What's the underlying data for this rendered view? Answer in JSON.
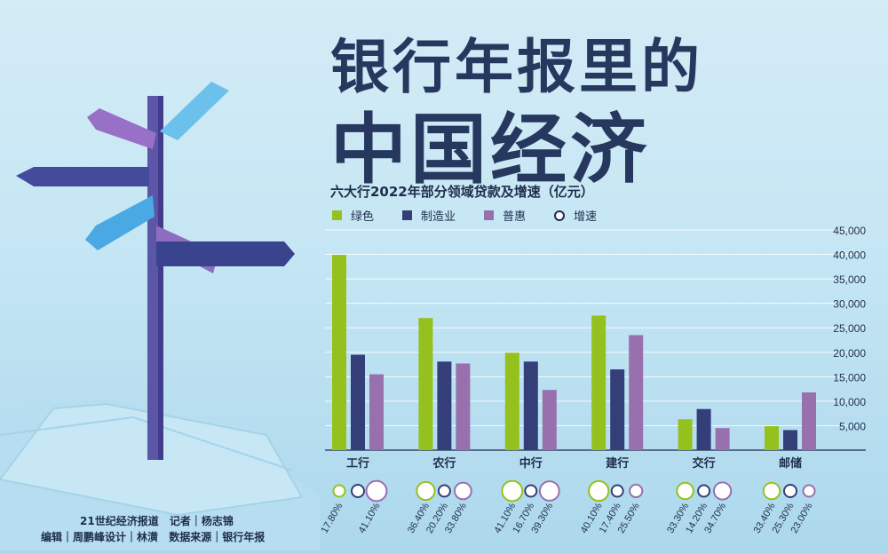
{
  "title_line1": "银行年报里的",
  "title_line2": "中国经济",
  "subtitle": "六大行2022年部分领域贷款及增速（亿元）",
  "legend": [
    {
      "label": "绿色",
      "color": "#95c11f",
      "shape": "square"
    },
    {
      "label": "制造业",
      "color": "#343f7a",
      "shape": "square"
    },
    {
      "label": "普惠",
      "color": "#9870ad",
      "shape": "square"
    },
    {
      "label": "增速",
      "color": "#ffffff",
      "shape": "ring"
    }
  ],
  "credits": {
    "line1": [
      "21世纪经济报道",
      "记者｜杨志锦"
    ],
    "line2": [
      "编辑｜周鹏峰设计｜林潢",
      "数据来源｜银行年报"
    ]
  },
  "chart_data": {
    "type": "bar",
    "title": "六大行2022年部分领域贷款及增速（亿元）",
    "categories": [
      "工行",
      "农行",
      "中行",
      "建行",
      "交行",
      "邮储"
    ],
    "series": [
      {
        "name": "绿色",
        "color": "#95c11f",
        "values": [
          39900,
          27000,
          19900,
          27500,
          6300,
          4900
        ],
        "growth": [
          "17.80%",
          "36.40%",
          "41.10%",
          "40.10%",
          "33.30%",
          "33.40%"
        ]
      },
      {
        "name": "制造业",
        "color": "#343f7a",
        "values": [
          19500,
          18100,
          18100,
          16500,
          8400,
          4100
        ],
        "growth": [
          "",
          "20.20%",
          "16.70%",
          "17.40%",
          "14.20%",
          "25.30%"
        ]
      },
      {
        "name": "普惠",
        "color": "#9870ad",
        "values": [
          15500,
          17700,
          12300,
          23500,
          4500,
          11800
        ],
        "growth": [
          "41.10%",
          "33.80%",
          "39.30%",
          "25.50%",
          "34.70%",
          "23.00%"
        ]
      }
    ],
    "growth_label": "增速",
    "yticks": [
      "5,000",
      "10,000",
      "15,000",
      "20,000",
      "25,000",
      "30,000",
      "35,000",
      "40,000",
      "45,000"
    ],
    "ylim": [
      0,
      45000
    ],
    "grid": true
  }
}
